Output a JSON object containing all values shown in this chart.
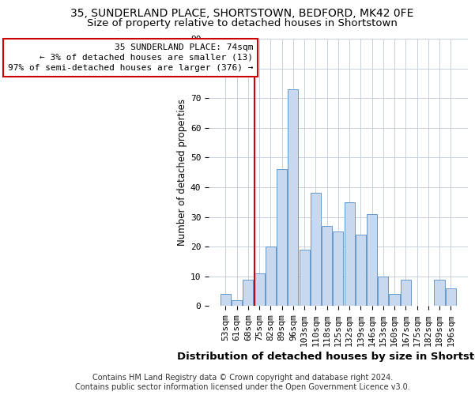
{
  "title": "35, SUNDERLAND PLACE, SHORTSTOWN, BEDFORD, MK42 0FE",
  "subtitle": "Size of property relative to detached houses in Shortstown",
  "xlabel": "Distribution of detached houses by size in Shortstown",
  "ylabel": "Number of detached properties",
  "bar_labels": [
    "53sqm",
    "61sqm",
    "68sqm",
    "75sqm",
    "82sqm",
    "89sqm",
    "96sqm",
    "103sqm",
    "110sqm",
    "118sqm",
    "125sqm",
    "132sqm",
    "139sqm",
    "146sqm",
    "153sqm",
    "160sqm",
    "167sqm",
    "175sqm",
    "182sqm",
    "189sqm",
    "196sqm"
  ],
  "bar_heights": [
    4,
    2,
    9,
    11,
    20,
    46,
    73,
    19,
    38,
    27,
    25,
    35,
    24,
    31,
    10,
    4,
    9,
    0,
    0,
    9,
    6
  ],
  "bar_color": "#c8d8ee",
  "bar_edgecolor": "#6699cc",
  "annotation_line_x_label": "75sqm",
  "annotation_line_color": "#cc0000",
  "annotation_box_text": "35 SUNDERLAND PLACE: 74sqm\n← 3% of detached houses are smaller (13)\n97% of semi-detached houses are larger (376) →",
  "annotation_box_facecolor": "white",
  "annotation_box_edgecolor": "#cc0000",
  "ylim": [
    0,
    90
  ],
  "yticks": [
    0,
    10,
    20,
    30,
    40,
    50,
    60,
    70,
    80,
    90
  ],
  "bg_color": "#ffffff",
  "grid_color": "#c8d0dc",
  "footer": "Contains HM Land Registry data © Crown copyright and database right 2024.\nContains public sector information licensed under the Open Government Licence v3.0.",
  "title_fontsize": 10,
  "subtitle_fontsize": 9.5,
  "xlabel_fontsize": 9.5,
  "ylabel_fontsize": 8.5,
  "tick_fontsize": 8,
  "footer_fontsize": 7
}
